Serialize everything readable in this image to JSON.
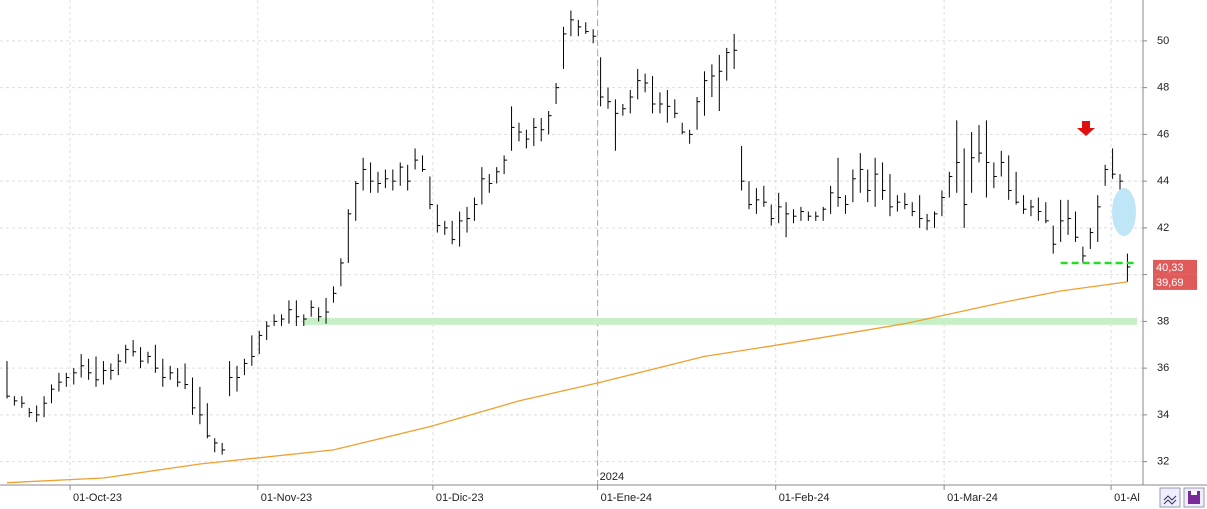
{
  "chart_data": {
    "type": "ohlc",
    "xlim": [
      -0.94,
      153.1
    ],
    "ylim": [
      31,
      51.75
    ],
    "yticks": [
      32,
      34,
      36,
      38,
      40,
      42,
      44,
      46,
      48,
      50
    ],
    "xticks": [
      {
        "value": 8.5,
        "label": "01-Oct-23"
      },
      {
        "value": 33.8,
        "label": "01-Nov-23"
      },
      {
        "value": 57.4,
        "label": "01-Dic-23"
      },
      {
        "value": 79.6,
        "label": "01-Ene-24"
      },
      {
        "value": 103.6,
        "label": "01-Feb-24"
      },
      {
        "value": 126.3,
        "label": "01-Mar-24"
      },
      {
        "value": 148.8,
        "label": "01-Al"
      }
    ],
    "grid": true,
    "year_marker": {
      "value": 79.6,
      "label": "2024"
    },
    "color": "#000000",
    "high": [
      36.3,
      34.8,
      34.8,
      34.3,
      34.4,
      34.8,
      35.3,
      35.8,
      35.8,
      36.0,
      36.6,
      36.4,
      36.5,
      36.3,
      36.2,
      36.6,
      37.0,
      37.2,
      36.9,
      36.7,
      37.0,
      36.4,
      36.1,
      36.0,
      36.2,
      35.6,
      35.2,
      34.5,
      33.0,
      32.8,
      36.3,
      36.1,
      36.4,
      37.4,
      37.6,
      38.0,
      38.3,
      38.3,
      38.9,
      38.9,
      38.3,
      38.9,
      38.6,
      39.0,
      39.5,
      40.7,
      42.8,
      44.0,
      45.0,
      44.8,
      44.4,
      44.5,
      44.5,
      44.8,
      44.7,
      45.4,
      45.1,
      44.2,
      43.0,
      42.3,
      42.3,
      42.7,
      42.9,
      43.3,
      44.6,
      44.3,
      44.6,
      45.1,
      47.2,
      46.5,
      46.2,
      46.7,
      46.7,
      47.0,
      48.2,
      50.6,
      51.3,
      50.9,
      50.8,
      50.5,
      49.3,
      48.0,
      47.5,
      47.3,
      47.9,
      48.8,
      48.6,
      48.5,
      47.8,
      47.9,
      47.5,
      46.5,
      46.2,
      47.6,
      48.7,
      49.0,
      49.4,
      49.7,
      50.3,
      45.5,
      44.0,
      43.7,
      43.8,
      43.0,
      43.5,
      43.1,
      42.8,
      42.9,
      42.7,
      42.7,
      42.9,
      43.8,
      45.0,
      43.4,
      44.5,
      45.2,
      44.5,
      45.0,
      44.8,
      44.3,
      43.4,
      43.5,
      43.1,
      43.4,
      42.6,
      42.7,
      43.6,
      44.4,
      46.6,
      45.4,
      46.1,
      46.4,
      46.6,
      44.8,
      45.3,
      45.1,
      44.4,
      43.4,
      43.2,
      43.3,
      43.1,
      42.1,
      43.2,
      43.2,
      42.7,
      41.2,
      42.0,
      43.4,
      44.7,
      45.4,
      44.3,
      40.9
    ],
    "low": [
      34.7,
      34.4,
      34.3,
      33.9,
      33.7,
      33.9,
      34.5,
      35.0,
      35.2,
      35.3,
      35.6,
      35.5,
      35.2,
      35.3,
      35.5,
      35.7,
      36.2,
      36.5,
      36.0,
      36.2,
      35.8,
      35.2,
      35.5,
      35.2,
      35.1,
      34.0,
      33.6,
      33.0,
      32.4,
      32.3,
      34.8,
      35.0,
      35.7,
      36.1,
      36.6,
      37.2,
      37.8,
      37.8,
      37.9,
      37.8,
      37.8,
      38.2,
      38.0,
      37.9,
      38.8,
      39.5,
      40.5,
      42.3,
      43.6,
      43.5,
      43.5,
      43.7,
      43.6,
      43.8,
      43.6,
      44.5,
      44.4,
      42.8,
      41.8,
      41.7,
      41.3,
      41.2,
      41.8,
      42.3,
      43.0,
      43.5,
      43.9,
      44.3,
      45.3,
      45.7,
      45.4,
      45.5,
      45.7,
      46.0,
      47.3,
      48.8,
      50.2,
      50.2,
      50.3,
      49.9,
      47.2,
      47.1,
      45.3,
      46.8,
      46.9,
      47.5,
      47.8,
      46.9,
      46.9,
      46.5,
      46.7,
      46.0,
      45.6,
      46.2,
      46.8,
      47.6,
      47.0,
      48.3,
      48.8,
      43.6,
      42.8,
      42.6,
      42.9,
      42.1,
      42.2,
      41.6,
      42.2,
      42.3,
      42.3,
      42.3,
      42.3,
      42.6,
      42.9,
      42.6,
      43.1,
      43.5,
      43.1,
      42.9,
      43.2,
      42.5,
      42.7,
      42.8,
      42.5,
      42.0,
      41.9,
      42.0,
      42.5,
      43.3,
      43.5,
      42.0,
      43.5,
      44.8,
      43.3,
      43.7,
      44.2,
      43.2,
      43.0,
      42.6,
      42.5,
      42.3,
      42.2,
      40.9,
      41.4,
      41.7,
      41.4,
      40.5,
      41.1,
      41.4,
      43.8,
      44.1,
      43.6,
      39.7
    ],
    "close": [
      34.8,
      34.6,
      34.5,
      34.1,
      34.0,
      34.5,
      35.1,
      35.4,
      35.6,
      35.8,
      36.1,
      35.8,
      35.5,
      35.9,
      35.9,
      36.3,
      36.8,
      36.7,
      36.3,
      36.5,
      36.0,
      35.6,
      35.8,
      35.4,
      35.3,
      34.3,
      34.0,
      33.1,
      32.8,
      32.5,
      35.6,
      35.6,
      36.2,
      36.5,
      37.4,
      37.8,
      38.0,
      38.1,
      38.5,
      38.2,
      38.1,
      38.6,
      38.2,
      38.4,
      39.2,
      40.5,
      42.6,
      43.9,
      44.5,
      44.0,
      43.9,
      44.1,
      44.0,
      44.6,
      44.0,
      44.9,
      44.5,
      43.0,
      42.1,
      42.0,
      41.5,
      42.3,
      42.4,
      43.0,
      44.1,
      43.9,
      44.4,
      44.9,
      46.3,
      46.1,
      45.8,
      46.3,
      46.2,
      46.8,
      48.0,
      50.3,
      50.9,
      50.6,
      50.4,
      50.2,
      47.6,
      47.4,
      46.9,
      47.1,
      47.6,
      48.3,
      48.2,
      47.3,
      47.3,
      47.2,
      46.9,
      46.1,
      46.0,
      47.4,
      48.3,
      48.5,
      48.7,
      49.5,
      49.6,
      44.0,
      43.0,
      43.2,
      43.1,
      42.4,
      42.9,
      42.6,
      42.5,
      42.7,
      42.5,
      42.5,
      42.8,
      43.5,
      43.3,
      43.0,
      44.1,
      44.5,
      43.6,
      44.3,
      43.6,
      42.9,
      43.1,
      43.0,
      42.7,
      42.4,
      42.3,
      42.6,
      43.3,
      44.2,
      44.8,
      43.0,
      45.0,
      45.2,
      44.8,
      44.2,
      44.8,
      43.6,
      43.1,
      42.8,
      42.9,
      42.7,
      42.3,
      41.3,
      42.3,
      42.4,
      41.6,
      40.8,
      41.8,
      42.9,
      44.5,
      44.3,
      44.0,
      40.33
    ],
    "moving_average": {
      "color": "#f0a030",
      "x": [
        0,
        13,
        26,
        44,
        57,
        69,
        80,
        94,
        104,
        121,
        134,
        142,
        151
      ],
      "values": [
        31.1,
        31.3,
        31.9,
        32.5,
        33.5,
        34.6,
        35.4,
        36.5,
        37.0,
        37.9,
        38.8,
        39.3,
        39.69
      ]
    },
    "support_line": {
      "value": 38,
      "from": 40,
      "color": "#c8f0c8"
    },
    "dashed_line": {
      "value": 40.5,
      "from": 142,
      "color": "#22dd22"
    },
    "price_tags": [
      {
        "value": 40.33,
        "label": "40,33",
        "color": "#e05a5a"
      },
      {
        "value": 39.69,
        "label": "39,69",
        "color": "#e05a5a"
      }
    ]
  }
}
